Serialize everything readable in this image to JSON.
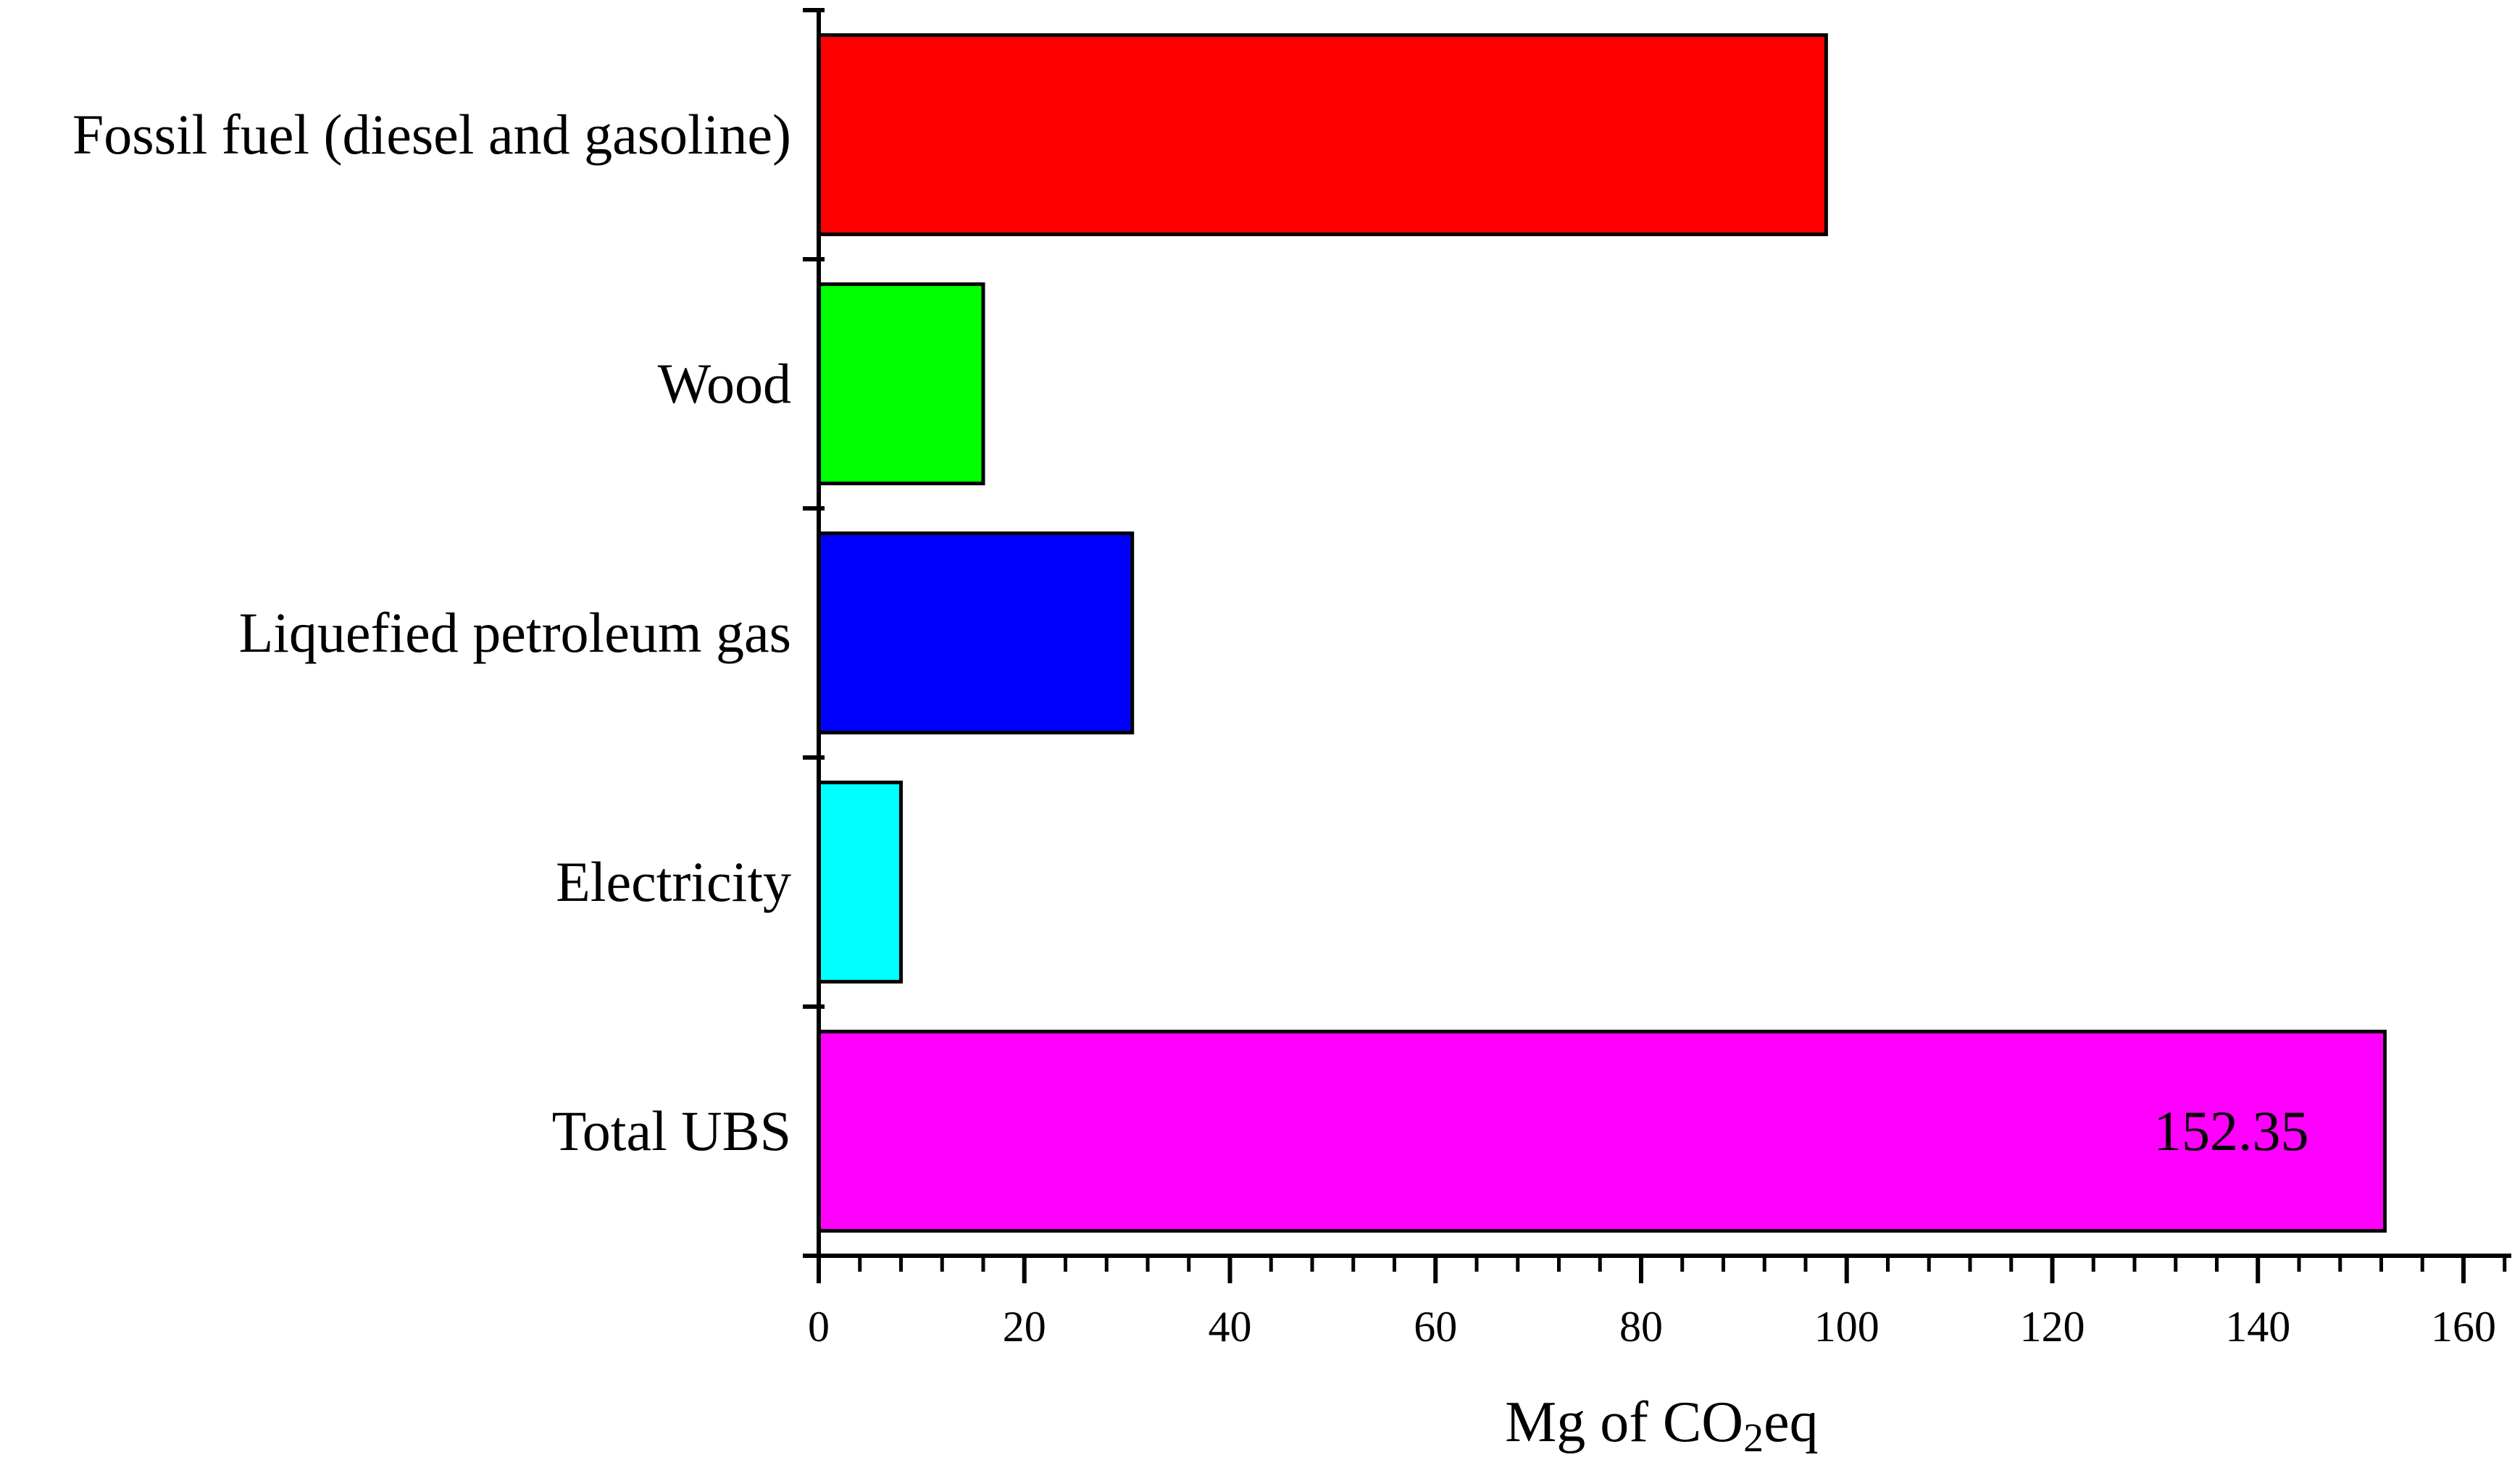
{
  "chart_data": {
    "type": "bar",
    "orientation": "horizontal",
    "categories": [
      "Fossil fuel (diesel and gasoline)",
      "Wood",
      "Liquefied petroleum gas",
      "Electricity",
      "Total UBS"
    ],
    "values": [
      98,
      16,
      30.5,
      8,
      152.35
    ],
    "bar_colors": [
      "#ff0000",
      "#00ff00",
      "#0000ff",
      "#00ffff",
      "#ff00ff"
    ],
    "data_labels": {
      "Total UBS": "152.35"
    },
    "xlabel": {
      "prefix": "Mg of CO",
      "subscript": "2",
      "suffix": "eq"
    },
    "ylabel": "",
    "title": "",
    "xlim": [
      0,
      165
    ],
    "xticks": [
      0,
      20,
      40,
      60,
      80,
      100,
      120,
      140,
      160
    ],
    "xtick_labels": [
      "0",
      "20",
      "40",
      "60",
      "80",
      "100",
      "120",
      "140",
      "160"
    ],
    "minor_tick_step": 4,
    "grid": false,
    "legend": "none"
  }
}
